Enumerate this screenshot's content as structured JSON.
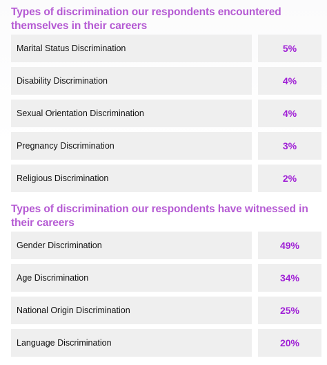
{
  "colors": {
    "title": "#b55ad3",
    "value": "#a020d6",
    "cell_bg": "#efefef",
    "label": "#111111"
  },
  "chart_data": [
    {
      "type": "table",
      "title": "Types of discrimination our respondents encountered themselves in their careers",
      "rows": [
        {
          "category": "Marital Status Discrimination",
          "value": "5%"
        },
        {
          "category": "Disability Discrimination",
          "value": "4%"
        },
        {
          "category": "Sexual Orientation Discrimination",
          "value": "4%"
        },
        {
          "category": "Pregnancy Discrimination",
          "value": "3%"
        },
        {
          "category": "Religious Discrimination",
          "value": "2%"
        }
      ]
    },
    {
      "type": "table",
      "title": "Types of discrimination our respondents have witnessed in their careers",
      "rows": [
        {
          "category": "Gender Discrimination",
          "value": "49%"
        },
        {
          "category": "Age Discrimination",
          "value": "34%"
        },
        {
          "category": "National Origin Discrimination",
          "value": "25%"
        },
        {
          "category": "Language Discrimination",
          "value": "20%"
        }
      ]
    }
  ]
}
